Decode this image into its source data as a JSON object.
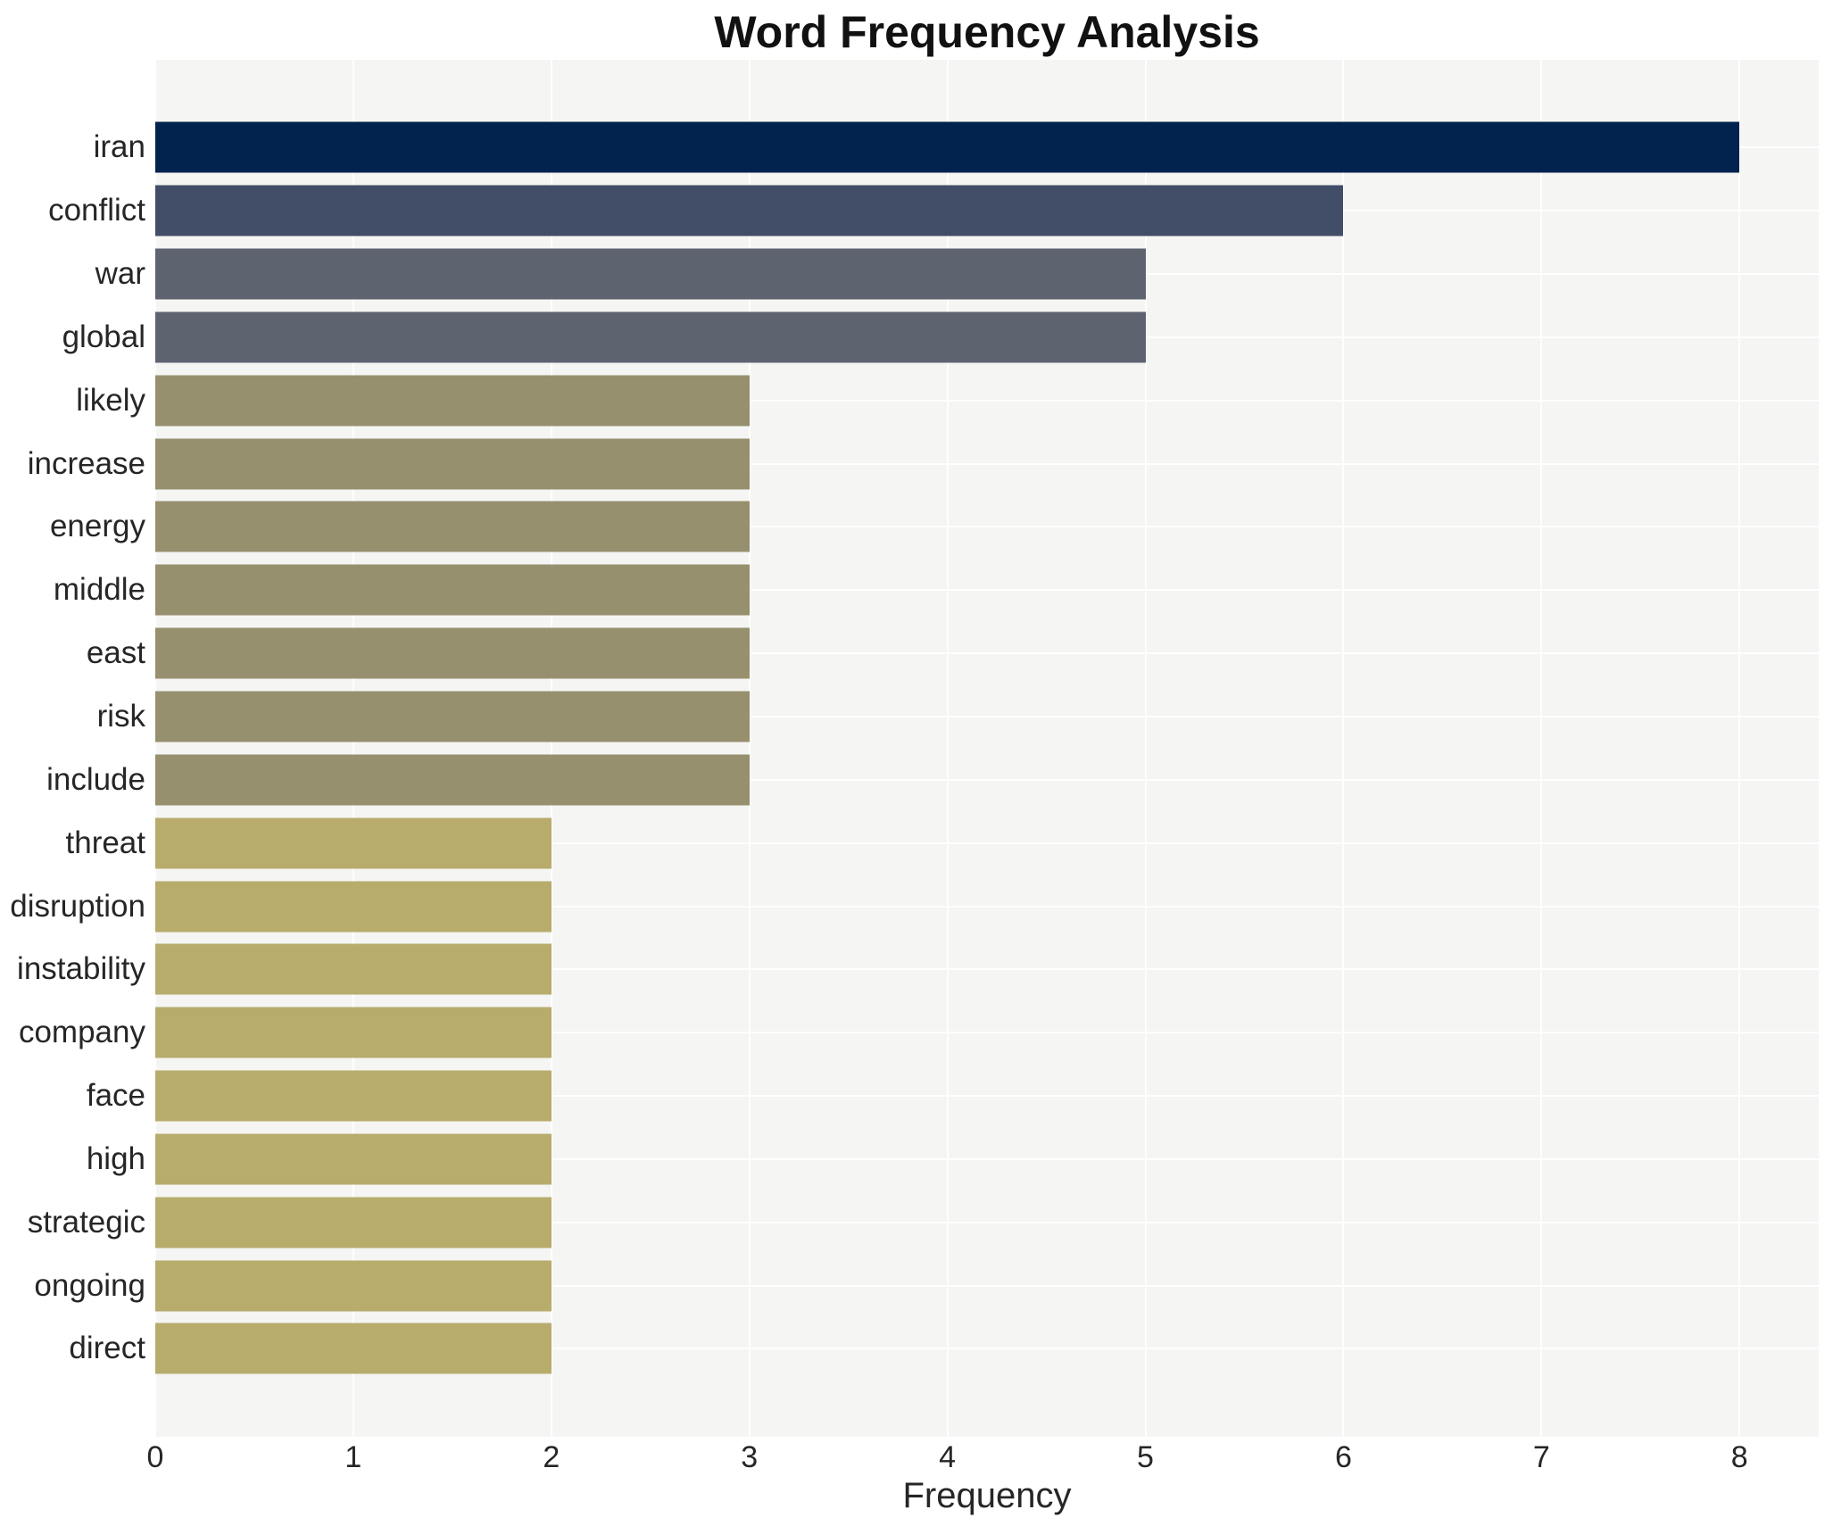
{
  "title": "Word Frequency Analysis",
  "chart_data": {
    "type": "bar",
    "orientation": "horizontal",
    "title": "Word Frequency Analysis",
    "xlabel": "Frequency",
    "ylabel": "",
    "xlim": [
      0,
      8.4
    ],
    "x_ticks": [
      0,
      1,
      2,
      3,
      4,
      5,
      6,
      7,
      8
    ],
    "grid": true,
    "legend": "none",
    "panel_background": "#f5f5f3",
    "grid_color": "#ffffff",
    "text_color": "#262626",
    "categories": [
      "iran",
      "conflict",
      "war",
      "global",
      "likely",
      "increase",
      "energy",
      "middle",
      "east",
      "risk",
      "include",
      "threat",
      "disruption",
      "instability",
      "company",
      "face",
      "high",
      "strategic",
      "ongoing",
      "direct"
    ],
    "values": [
      8,
      6,
      5,
      5,
      3,
      3,
      3,
      3,
      3,
      3,
      3,
      2,
      2,
      2,
      2,
      2,
      2,
      2,
      2,
      2
    ],
    "bar_colors": [
      "#02234d",
      "#424e67",
      "#5e6370",
      "#5e6370",
      "#97906f",
      "#97906f",
      "#97906f",
      "#97906f",
      "#97906f",
      "#97906f",
      "#97906f",
      "#b8ac6c",
      "#b8ac6c",
      "#b8ac6c",
      "#b8ac6c",
      "#b8ac6c",
      "#b8ac6c",
      "#b8ac6c",
      "#b8ac6c",
      "#b8ac6c"
    ]
  }
}
